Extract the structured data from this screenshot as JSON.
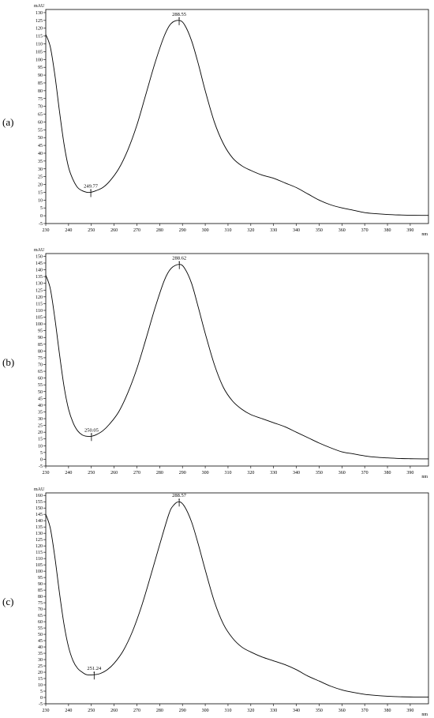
{
  "chart_data": [
    {
      "type": "line",
      "panel_label": "(a)",
      "ylabel": "mAU",
      "xlabel": "nm",
      "xlim": [
        230,
        398
      ],
      "ylim": [
        -5,
        132
      ],
      "x_ticks": [
        230,
        240,
        250,
        260,
        270,
        280,
        290,
        300,
        310,
        320,
        330,
        340,
        350,
        360,
        370,
        380,
        390
      ],
      "y_ticks": [
        -5,
        0,
        5,
        10,
        15,
        20,
        25,
        30,
        35,
        40,
        45,
        50,
        55,
        60,
        65,
        70,
        75,
        80,
        85,
        90,
        95,
        100,
        105,
        110,
        115,
        120,
        125,
        130
      ],
      "series": [
        {
          "x": [
            230,
            232,
            234,
            236,
            238,
            240,
            242,
            244,
            246,
            248,
            249.77,
            252,
            255,
            258,
            262,
            266,
            270,
            274,
            278,
            282,
            285,
            288.55,
            291,
            294,
            297,
            300,
            304,
            308,
            312,
            316,
            320,
            325,
            330,
            335,
            340,
            345,
            350,
            355,
            360,
            365,
            370,
            375,
            380,
            385,
            390,
            395,
            398
          ],
          "values": [
            116,
            108,
            90,
            67,
            46,
            31,
            23,
            18,
            16,
            15,
            15,
            16,
            18,
            22,
            30,
            42,
            58,
            78,
            98,
            115,
            123,
            125,
            122,
            112,
            97,
            80,
            60,
            46,
            37,
            32,
            29,
            26,
            24,
            21,
            18,
            14,
            10,
            7,
            5,
            3.5,
            2,
            1.3,
            0.8,
            0.5,
            0.3,
            0.2,
            0.2
          ]
        }
      ],
      "annotations": [
        {
          "x": 249.77,
          "y": 15,
          "text": "249.77"
        },
        {
          "x": 288.55,
          "y": 125,
          "text": "288.55"
        }
      ]
    },
    {
      "type": "line",
      "panel_label": "(b)",
      "ylabel": "mAU",
      "xlabel": "nm",
      "xlim": [
        230,
        398
      ],
      "ylim": [
        -5,
        152
      ],
      "x_ticks": [
        230,
        240,
        250,
        260,
        270,
        280,
        290,
        300,
        310,
        320,
        330,
        340,
        350,
        360,
        370,
        380,
        390
      ],
      "y_ticks": [
        -5,
        0,
        5,
        10,
        15,
        20,
        25,
        30,
        35,
        40,
        45,
        50,
        55,
        60,
        65,
        70,
        75,
        80,
        85,
        90,
        95,
        100,
        105,
        110,
        115,
        120,
        125,
        130,
        135,
        140,
        145,
        150
      ],
      "series": [
        {
          "x": [
            230,
            232,
            234,
            236,
            238,
            240,
            242,
            244,
            246,
            248,
            250.05,
            252,
            255,
            258,
            262,
            266,
            270,
            274,
            278,
            282,
            285,
            288.62,
            291,
            294,
            297,
            300,
            304,
            308,
            312,
            316,
            320,
            325,
            330,
            335,
            340,
            345,
            350,
            355,
            360,
            365,
            370,
            375,
            380,
            385,
            390,
            395,
            398
          ],
          "values": [
            136,
            126,
            104,
            78,
            54,
            37,
            27,
            21,
            18,
            17,
            17,
            18,
            21,
            26,
            35,
            49,
            67,
            89,
            112,
            132,
            141,
            144,
            141,
            130,
            112,
            93,
            70,
            53,
            43,
            37,
            33,
            30,
            27,
            24,
            20,
            16,
            12,
            8.5,
            5.5,
            4,
            2.5,
            1.5,
            1,
            0.6,
            0.4,
            0.3,
            0.3
          ]
        }
      ],
      "annotations": [
        {
          "x": 250.05,
          "y": 17,
          "text": "250.05"
        },
        {
          "x": 288.62,
          "y": 144,
          "text": "288.62"
        }
      ]
    },
    {
      "type": "line",
      "panel_label": "(c)",
      "ylabel": "mAU",
      "xlabel": "nm",
      "xlim": [
        230,
        398
      ],
      "ylim": [
        -5,
        162
      ],
      "x_ticks": [
        230,
        240,
        250,
        260,
        270,
        280,
        290,
        300,
        310,
        320,
        330,
        340,
        350,
        360,
        370,
        380,
        390
      ],
      "y_ticks": [
        -5,
        0,
        5,
        10,
        15,
        20,
        25,
        30,
        35,
        40,
        45,
        50,
        55,
        60,
        65,
        70,
        75,
        80,
        85,
        90,
        95,
        100,
        105,
        110,
        115,
        120,
        125,
        130,
        135,
        140,
        145,
        150,
        155,
        160
      ],
      "series": [
        {
          "x": [
            230,
            232,
            234,
            236,
            238,
            240,
            242,
            244,
            246,
            248,
            251.24,
            254,
            257,
            260,
            264,
            268,
            272,
            276,
            280,
            284,
            286,
            288.57,
            291,
            294,
            297,
            300,
            304,
            308,
            312,
            316,
            320,
            325,
            330,
            335,
            340,
            345,
            350,
            355,
            360,
            365,
            370,
            375,
            380,
            385,
            390,
            395,
            398
          ],
          "values": [
            145,
            134,
            111,
            83,
            58,
            40,
            29,
            23,
            20,
            18,
            18,
            19,
            22,
            27,
            37,
            52,
            72,
            96,
            121,
            145,
            152,
            155,
            151,
            139,
            121,
            101,
            76,
            58,
            47,
            40,
            36,
            32,
            29,
            26,
            22,
            17,
            13,
            9,
            6,
            4,
            2.5,
            1.6,
            1,
            0.6,
            0.4,
            0.3,
            0.3
          ]
        }
      ],
      "annotations": [
        {
          "x": 251.24,
          "y": 18,
          "text": "251.24"
        },
        {
          "x": 288.57,
          "y": 155,
          "text": "288.57"
        }
      ]
    }
  ]
}
